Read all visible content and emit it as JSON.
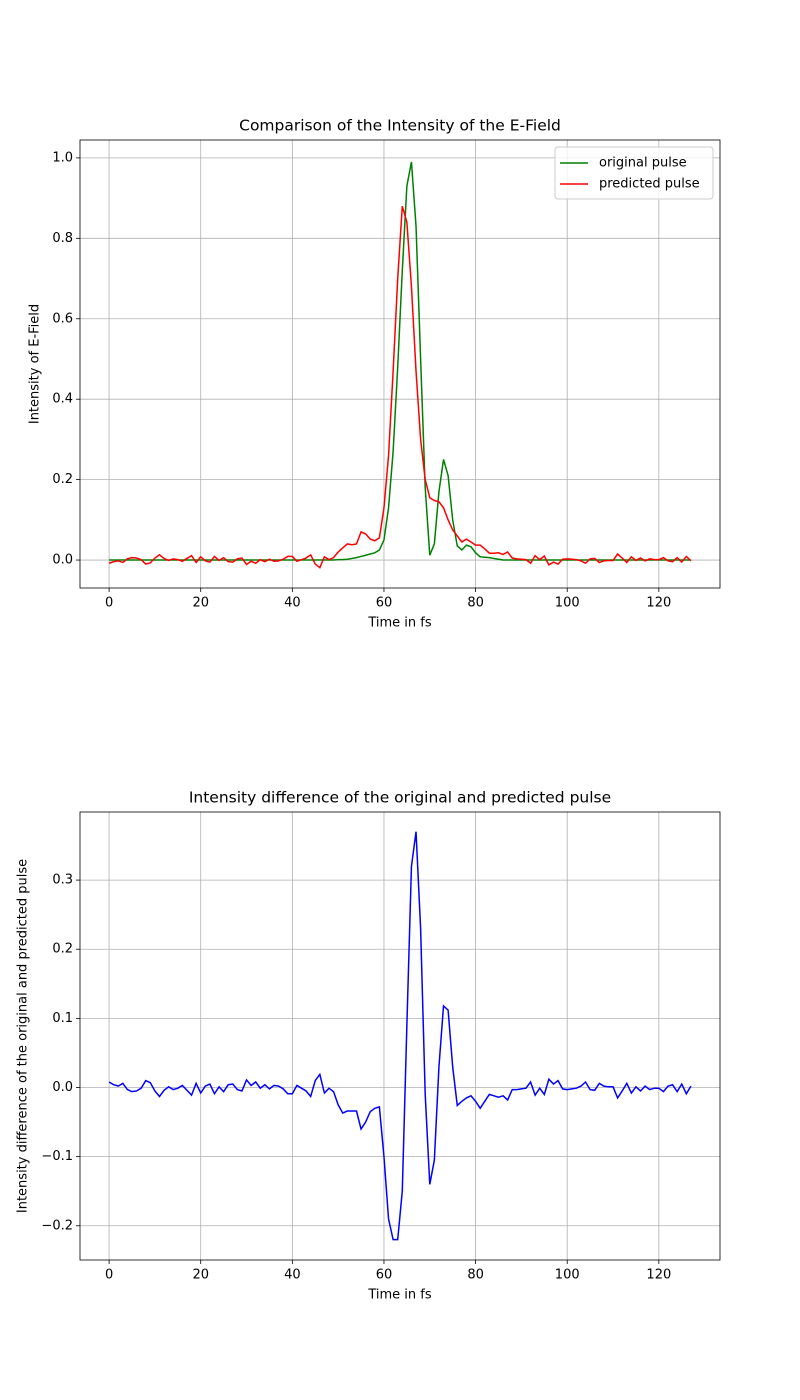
{
  "chart_data": [
    {
      "type": "line",
      "title": "Comparison of the Intensity of the E-Field",
      "x_label": "Time in fs",
      "y_label": "Intensity of E-Field",
      "x": [
        0,
        1,
        2,
        3,
        4,
        5,
        6,
        7,
        8,
        9,
        10,
        11,
        12,
        13,
        14,
        15,
        16,
        17,
        18,
        19,
        20,
        21,
        22,
        23,
        24,
        25,
        26,
        27,
        28,
        29,
        30,
        31,
        32,
        33,
        34,
        35,
        36,
        37,
        38,
        39,
        40,
        41,
        42,
        43,
        44,
        45,
        46,
        47,
        48,
        49,
        50,
        51,
        52,
        53,
        54,
        55,
        56,
        57,
        58,
        59,
        60,
        61,
        62,
        63,
        64,
        65,
        66,
        67,
        68,
        69,
        70,
        71,
        72,
        73,
        74,
        75,
        76,
        77,
        78,
        79,
        80,
        81,
        82,
        83,
        84,
        85,
        86,
        87,
        88,
        89,
        90,
        91,
        92,
        93,
        94,
        95,
        96,
        97,
        98,
        99,
        100,
        101,
        102,
        103,
        104,
        105,
        106,
        107,
        108,
        109,
        110,
        111,
        112,
        113,
        114,
        115,
        116,
        117,
        118,
        119,
        120,
        121,
        122,
        123,
        124,
        125,
        126,
        127
      ],
      "series": [
        {
          "name": "original pulse",
          "color": "#008000",
          "values": [
            0,
            0,
            0,
            0,
            0,
            0,
            0,
            0,
            0,
            0,
            0,
            0,
            0,
            0,
            0,
            0,
            0,
            0,
            0,
            0,
            0,
            0,
            0,
            0,
            0,
            0,
            0,
            0,
            0,
            0,
            0,
            0,
            0,
            0,
            0,
            0,
            0,
            0,
            0,
            0,
            0,
            0,
            0,
            0,
            0,
            0,
            0,
            0,
            0,
            0,
            0.001,
            0.001,
            0.002,
            0.004,
            0.006,
            0.009,
            0.012,
            0.015,
            0.018,
            0.025,
            0.05,
            0.13,
            0.27,
            0.48,
            0.72,
            0.93,
            0.99,
            0.83,
            0.5,
            0.18,
            0.012,
            0.04,
            0.17,
            0.25,
            0.21,
            0.1,
            0.035,
            0.025,
            0.037,
            0.033,
            0.018,
            0.008,
            0.007,
            0.006,
            0.004,
            0.002,
            0,
            0,
            0,
            0,
            0,
            0,
            0,
            0,
            0,
            0,
            0,
            0,
            0,
            0,
            0,
            0,
            0,
            0,
            0,
            0,
            0,
            0,
            0,
            0,
            0,
            0,
            0,
            0,
            0,
            0,
            0,
            0,
            0,
            0,
            0,
            0,
            0,
            0,
            0,
            0,
            0,
            0
          ]
        },
        {
          "name": "predicted pulse",
          "color": "#ff0000",
          "values": [
            -0.008,
            -0.004,
            -0.002,
            -0.006,
            0.003,
            0.006,
            0.005,
            0.001,
            -0.01,
            -0.007,
            0.005,
            0.013,
            0.004,
            -0.001,
            0.003,
            0.001,
            -0.003,
            0.004,
            0.011,
            -0.006,
            0.008,
            -0.002,
            -0.005,
            0.009,
            -0.001,
            0.006,
            -0.004,
            -0.005,
            0.003,
            0.005,
            -0.011,
            -0.003,
            -0.008,
            0.001,
            -0.004,
            0.002,
            -0.003,
            -0.002,
            0.002,
            0.009,
            0.009,
            -0.003,
            0.001,
            0.005,
            0.013,
            -0.01,
            -0.019,
            0.008,
            0.001,
            0.006,
            0.02,
            0.03,
            0.04,
            0.038,
            0.04,
            0.07,
            0.065,
            0.052,
            0.048,
            0.055,
            0.13,
            0.26,
            0.47,
            0.7,
            0.88,
            0.84,
            0.68,
            0.47,
            0.3,
            0.2,
            0.155,
            0.148,
            0.145,
            0.13,
            0.1,
            0.075,
            0.06,
            0.045,
            0.052,
            0.045,
            0.037,
            0.037,
            0.028,
            0.017,
            0.017,
            0.018,
            0.014,
            0.02,
            0.005,
            0.003,
            0.002,
            0.001,
            -0.008,
            0.011,
            0.001,
            0.01,
            -0.012,
            -0.005,
            -0.01,
            0.002,
            0.003,
            0.002,
            0.001,
            -0.002,
            -0.008,
            0.003,
            0.004,
            -0.006,
            -0.002,
            -0.001,
            -0.001,
            0.015,
            0.005,
            -0.006,
            0.008,
            -0.001,
            0.005,
            -0.002,
            0.003,
            0.001,
            0.001,
            0.006,
            -0.002,
            -0.004,
            0.006,
            -0.005,
            0.009,
            -0.002
          ]
        }
      ],
      "xlim": [
        -6.35,
        133.35
      ],
      "xticks": [
        0,
        20,
        40,
        60,
        80,
        100,
        120
      ],
      "ylim": [
        -0.0695,
        1.0445
      ],
      "yticks": [
        {
          "value": 0,
          "label": "0.0"
        },
        {
          "value": 0.2,
          "label": "0.2"
        },
        {
          "value": 0.4,
          "label": "0.4"
        },
        {
          "value": 0.6,
          "label": "0.6"
        },
        {
          "value": 0.8,
          "label": "0.8"
        },
        {
          "value": 1,
          "label": "1.0"
        }
      ],
      "grid": true,
      "legend": "upper right"
    },
    {
      "type": "line",
      "title": "Intensity difference of the original and predicted pulse",
      "x_label": "Time in fs",
      "y_label": "Intensity difference of the original and predicted pulse",
      "x": [
        0,
        1,
        2,
        3,
        4,
        5,
        6,
        7,
        8,
        9,
        10,
        11,
        12,
        13,
        14,
        15,
        16,
        17,
        18,
        19,
        20,
        21,
        22,
        23,
        24,
        25,
        26,
        27,
        28,
        29,
        30,
        31,
        32,
        33,
        34,
        35,
        36,
        37,
        38,
        39,
        40,
        41,
        42,
        43,
        44,
        45,
        46,
        47,
        48,
        49,
        50,
        51,
        52,
        53,
        54,
        55,
        56,
        57,
        58,
        59,
        60,
        61,
        62,
        63,
        64,
        65,
        66,
        67,
        68,
        69,
        70,
        71,
        72,
        73,
        74,
        75,
        76,
        77,
        78,
        79,
        80,
        81,
        82,
        83,
        84,
        85,
        86,
        87,
        88,
        89,
        90,
        91,
        92,
        93,
        94,
        95,
        96,
        97,
        98,
        99,
        100,
        101,
        102,
        103,
        104,
        105,
        106,
        107,
        108,
        109,
        110,
        111,
        112,
        113,
        114,
        115,
        116,
        117,
        118,
        119,
        120,
        121,
        122,
        123,
        124,
        125,
        126,
        127
      ],
      "series": [
        {
          "color": "#0000ff",
          "values": [
            0.008,
            0.004,
            0.002,
            0.006,
            -0.003,
            -0.006,
            -0.005,
            -0.001,
            0.01,
            0.007,
            -0.005,
            -0.013,
            -0.004,
            0.001,
            -0.003,
            -0.001,
            0.003,
            -0.004,
            -0.011,
            0.006,
            -0.008,
            0.002,
            0.005,
            -0.009,
            0.001,
            -0.006,
            0.004,
            0.005,
            -0.003,
            -0.005,
            0.011,
            0.003,
            0.008,
            -0.001,
            0.004,
            -0.002,
            0.003,
            0.002,
            -0.002,
            -0.009,
            -0.009,
            0.003,
            -0.001,
            -0.005,
            -0.013,
            0.01,
            0.019,
            -0.008,
            -0.001,
            -0.006,
            -0.025,
            -0.037,
            -0.034,
            -0.034,
            -0.034,
            -0.06,
            -0.05,
            -0.035,
            -0.03,
            -0.028,
            -0.1,
            -0.19,
            -0.22,
            -0.22,
            -0.15,
            0.09,
            0.32,
            0.37,
            0.23,
            -0.01,
            -0.14,
            -0.105,
            0.03,
            0.118,
            0.112,
            0.03,
            -0.026,
            -0.02,
            -0.015,
            -0.012,
            -0.02,
            -0.03,
            -0.02,
            -0.01,
            -0.012,
            -0.014,
            -0.012,
            -0.018,
            -0.003,
            -0.003,
            -0.002,
            -0.001,
            0.008,
            -0.011,
            -0.001,
            -0.01,
            0.012,
            0.005,
            0.01,
            -0.002,
            -0.003,
            -0.002,
            -0.001,
            0.002,
            0.008,
            -0.003,
            -0.004,
            0.006,
            0.002,
            0.001,
            0.001,
            -0.015,
            -0.005,
            0.006,
            -0.008,
            0.001,
            -0.005,
            0.002,
            -0.003,
            -0.001,
            -0.001,
            -0.006,
            0.002,
            0.004,
            -0.006,
            0.005,
            -0.009,
            0.002
          ]
        }
      ],
      "xlim": [
        -6.35,
        133.35
      ],
      "xticks": [
        0,
        20,
        40,
        60,
        80,
        100,
        120
      ],
      "ylim": [
        -0.2495,
        0.3985
      ],
      "yticks": [
        {
          "value": -0.2,
          "label": "−0.2"
        },
        {
          "value": -0.1,
          "label": "−0.1"
        },
        {
          "value": 0,
          "label": "0.0"
        },
        {
          "value": 0.1,
          "label": "0.1"
        },
        {
          "value": 0.2,
          "label": "0.2"
        },
        {
          "value": 0.3,
          "label": "0.3"
        }
      ],
      "grid": true
    }
  ]
}
